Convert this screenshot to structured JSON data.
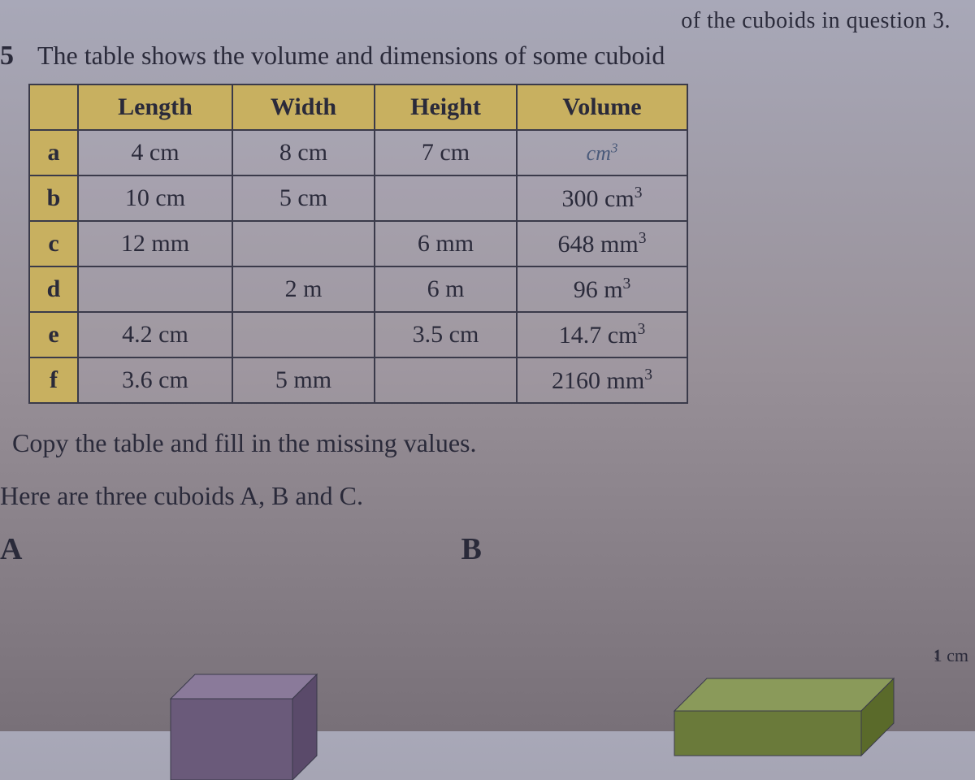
{
  "top_cutoff": "of the cuboids in question 3.",
  "question": {
    "number": "5",
    "text": "The table shows the volume and dimensions of some cuboid"
  },
  "table": {
    "headers": {
      "corner": "",
      "length": "Length",
      "width": "Width",
      "height": "Height",
      "volume": "Volume"
    },
    "rows": [
      {
        "label": "a",
        "length": "4 cm",
        "width": "8 cm",
        "height": "7 cm",
        "volume": "",
        "volume_pencil": "cm³"
      },
      {
        "label": "b",
        "length": "10 cm",
        "width": "5 cm",
        "height": "",
        "volume": "300 cm³"
      },
      {
        "label": "c",
        "length": "12 mm",
        "width": "",
        "height": "6 mm",
        "volume": "648 mm³"
      },
      {
        "label": "d",
        "length": "",
        "width": "2 m",
        "height": "6 m",
        "volume": "96 m³"
      },
      {
        "label": "e",
        "length": "4.2 cm",
        "width": "",
        "height": "3.5 cm",
        "volume": "14.7 cm³"
      },
      {
        "label": "f",
        "length": "3.6 cm",
        "width": "5 mm",
        "height": "",
        "volume": "2160 mm³"
      }
    ]
  },
  "instruction": "Copy the table and fill in the missing values.",
  "next_question": "Here are three cuboids A, B and C.",
  "cuboid_labels": {
    "a": "A",
    "b": "B"
  },
  "dimension": {
    "value": "1 cm"
  },
  "colors": {
    "header_bg": "#c8b060",
    "border": "#3a3a4a",
    "text": "#2a2a3a",
    "cuboid_a_top": "#8a7a9a",
    "cuboid_a_front": "#6a5a7a",
    "cuboid_b_top": "#8a9a5a",
    "cuboid_b_front": "#6a7a3a"
  }
}
